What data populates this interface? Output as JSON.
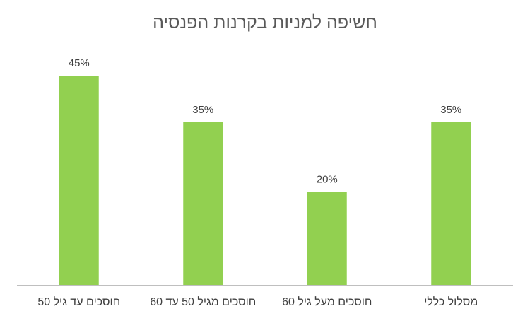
{
  "chart_data": {
    "type": "bar",
    "title": "חשיפה למניות בקרנות הפנסיה",
    "categories": [
      "חוסכים עד גיל 50",
      "חוסכים מגיל 50 עד 60",
      "חוסכים מעל גיל 60",
      "מסלול כללי"
    ],
    "values": [
      45,
      35,
      20,
      35
    ],
    "data_labels": [
      "45%",
      "35%",
      "20%",
      "35%"
    ],
    "xlabel": "",
    "ylabel": "",
    "ylim": [
      0,
      50
    ],
    "grid": false,
    "legend": "none",
    "colors": {
      "bar": "#92d050",
      "axis": "#bfbfbf",
      "text": "#404040",
      "title": "#595959"
    }
  }
}
